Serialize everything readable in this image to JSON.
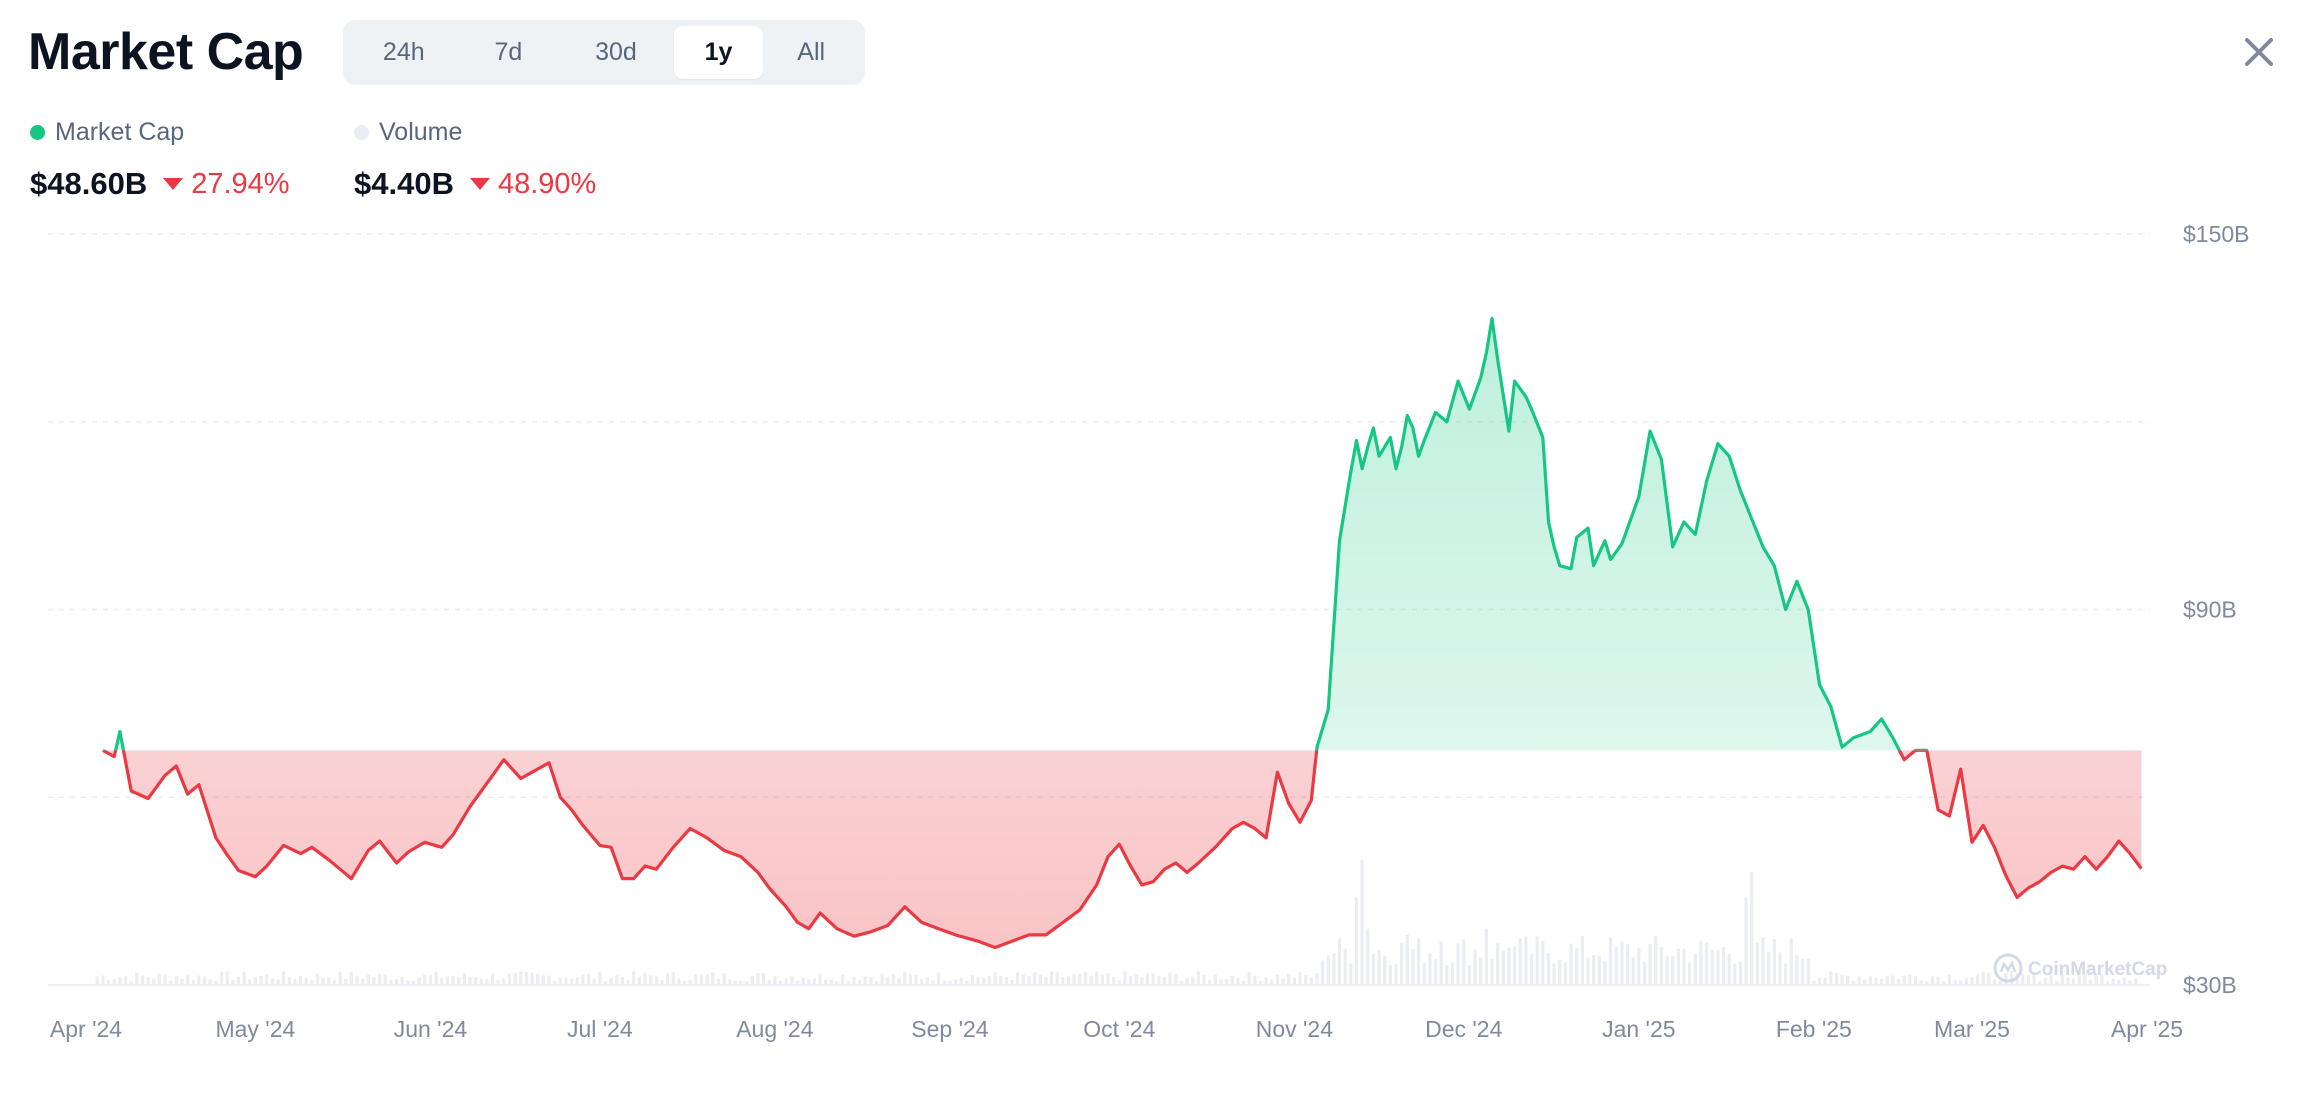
{
  "title": "Market Cap",
  "tabs": [
    {
      "label": "24h",
      "active": false
    },
    {
      "label": "7d",
      "active": false
    },
    {
      "label": "30d",
      "active": false
    },
    {
      "label": "1y",
      "active": true
    },
    {
      "label": "All",
      "active": false
    }
  ],
  "legend": {
    "market_cap": {
      "label": "Market Cap",
      "color": "#16c784"
    },
    "volume": {
      "label": "Volume",
      "color": "#eff2f5"
    }
  },
  "stats": {
    "market_cap": {
      "value": "$48.60B",
      "change": "27.94%",
      "direction": "down"
    },
    "volume": {
      "value": "$4.40B",
      "change": "48.90%",
      "direction": "down"
    }
  },
  "colors": {
    "up": "#16c784",
    "down": "#ea3943",
    "axis_text": "#808a9d",
    "grid": "#e9ecf0"
  },
  "watermark": "CoinMarketCap",
  "chart_data": {
    "type": "area",
    "baseline": 67.5,
    "ylim": [
      30,
      150
    ],
    "y_ticks": [
      {
        "value": 150,
        "label": "$150B"
      },
      {
        "value": 90,
        "label": "$90B"
      },
      {
        "value": 30,
        "label": "$30B"
      }
    ],
    "gridlines": [
      150,
      120,
      90,
      60
    ],
    "x_ticks": [
      {
        "label": "Apr '24",
        "date": "2024-04-01"
      },
      {
        "label": "May '24",
        "date": "2024-05-01"
      },
      {
        "label": "Jun '24",
        "date": "2024-06-01"
      },
      {
        "label": "Jul '24",
        "date": "2024-07-01"
      },
      {
        "label": "Aug '24",
        "date": "2024-08-01"
      },
      {
        "label": "Sep '24",
        "date": "2024-09-01"
      },
      {
        "label": "Oct '24",
        "date": "2024-10-01"
      },
      {
        "label": "Nov '24",
        "date": "2024-11-01"
      },
      {
        "label": "Dec '24",
        "date": "2024-12-01"
      },
      {
        "label": "Jan '25",
        "date": "2025-01-01"
      },
      {
        "label": "Feb '25",
        "date": "2025-02-01"
      },
      {
        "label": "Mar '25",
        "date": "2025-03-01"
      },
      {
        "label": "Apr '25",
        "date": "2025-04-01"
      }
    ],
    "x_range": [
      "2024-04-01",
      "2025-04-01"
    ],
    "series": [
      {
        "name": "Market Cap",
        "points": [
          [
            "2024-04-04",
            67.5
          ],
          [
            "2024-04-06",
            66.5
          ],
          [
            "2024-04-07",
            70.5
          ],
          [
            "2024-04-09",
            61.0
          ],
          [
            "2024-04-12",
            59.8
          ],
          [
            "2024-04-15",
            63.5
          ],
          [
            "2024-04-17",
            65.0
          ],
          [
            "2024-04-19",
            60.5
          ],
          [
            "2024-04-21",
            62.0
          ],
          [
            "2024-04-24",
            53.5
          ],
          [
            "2024-04-26",
            50.8
          ],
          [
            "2024-04-28",
            48.3
          ],
          [
            "2024-05-01",
            47.3
          ],
          [
            "2024-05-03",
            49.0
          ],
          [
            "2024-05-06",
            52.3
          ],
          [
            "2024-05-09",
            51.0
          ],
          [
            "2024-05-11",
            52.0
          ],
          [
            "2024-05-14",
            50.0
          ],
          [
            "2024-05-16",
            48.5
          ],
          [
            "2024-05-18",
            47.0
          ],
          [
            "2024-05-21",
            51.5
          ],
          [
            "2024-05-23",
            53.0
          ],
          [
            "2024-05-26",
            49.5
          ],
          [
            "2024-05-28",
            51.2
          ],
          [
            "2024-05-31",
            52.8
          ],
          [
            "2024-06-03",
            52.0
          ],
          [
            "2024-06-05",
            54.0
          ],
          [
            "2024-06-08",
            58.5
          ],
          [
            "2024-06-10",
            61.0
          ],
          [
            "2024-06-12",
            63.5
          ],
          [
            "2024-06-14",
            66.0
          ],
          [
            "2024-06-17",
            63.0
          ],
          [
            "2024-06-19",
            64.0
          ],
          [
            "2024-06-22",
            65.5
          ],
          [
            "2024-06-24",
            60.0
          ],
          [
            "2024-06-26",
            58.0
          ],
          [
            "2024-06-28",
            55.5
          ],
          [
            "2024-07-01",
            52.3
          ],
          [
            "2024-07-03",
            52.0
          ],
          [
            "2024-07-05",
            47.0
          ],
          [
            "2024-07-07",
            47.0
          ],
          [
            "2024-07-09",
            49.0
          ],
          [
            "2024-07-11",
            48.5
          ],
          [
            "2024-07-14",
            52.0
          ],
          [
            "2024-07-17",
            55.0
          ],
          [
            "2024-07-20",
            53.5
          ],
          [
            "2024-07-23",
            51.5
          ],
          [
            "2024-07-26",
            50.5
          ],
          [
            "2024-07-29",
            48.0
          ],
          [
            "2024-07-31",
            45.5
          ],
          [
            "2024-08-03",
            42.5
          ],
          [
            "2024-08-05",
            40.0
          ],
          [
            "2024-08-07",
            39.0
          ],
          [
            "2024-08-09",
            41.5
          ],
          [
            "2024-08-12",
            39.0
          ],
          [
            "2024-08-15",
            37.8
          ],
          [
            "2024-08-18",
            38.5
          ],
          [
            "2024-08-21",
            39.5
          ],
          [
            "2024-08-24",
            42.5
          ],
          [
            "2024-08-27",
            40.0
          ],
          [
            "2024-08-30",
            39.0
          ],
          [
            "2024-09-02",
            38.0
          ],
          [
            "2024-09-06",
            37.0
          ],
          [
            "2024-09-09",
            36.0
          ],
          [
            "2024-09-12",
            37.0
          ],
          [
            "2024-09-15",
            38.0
          ],
          [
            "2024-09-18",
            38.0
          ],
          [
            "2024-09-21",
            40.0
          ],
          [
            "2024-09-24",
            42.0
          ],
          [
            "2024-09-27",
            46.0
          ],
          [
            "2024-09-29",
            50.5
          ],
          [
            "2024-10-01",
            52.5
          ],
          [
            "2024-10-03",
            49.0
          ],
          [
            "2024-10-05",
            46.0
          ],
          [
            "2024-10-07",
            46.5
          ],
          [
            "2024-10-09",
            48.5
          ],
          [
            "2024-10-11",
            49.5
          ],
          [
            "2024-10-13",
            48.0
          ],
          [
            "2024-10-15",
            49.5
          ],
          [
            "2024-10-18",
            52.0
          ],
          [
            "2024-10-21",
            55.0
          ],
          [
            "2024-10-23",
            56.0
          ],
          [
            "2024-10-25",
            55.0
          ],
          [
            "2024-10-27",
            53.5
          ],
          [
            "2024-10-29",
            64.0
          ],
          [
            "2024-10-31",
            59.0
          ],
          [
            "2024-11-02",
            56.0
          ],
          [
            "2024-11-04",
            59.5
          ],
          [
            "2024-11-05",
            68.0
          ],
          [
            "2024-11-07",
            74.0
          ],
          [
            "2024-11-09",
            101.0
          ],
          [
            "2024-11-11",
            112.0
          ],
          [
            "2024-11-12",
            117.0
          ],
          [
            "2024-11-13",
            112.5
          ],
          [
            "2024-11-14",
            116.0
          ],
          [
            "2024-11-15",
            119.0
          ],
          [
            "2024-11-16",
            114.5
          ],
          [
            "2024-11-17",
            116.0
          ],
          [
            "2024-11-18",
            117.5
          ],
          [
            "2024-11-19",
            112.5
          ],
          [
            "2024-11-20",
            116.0
          ],
          [
            "2024-11-21",
            121.0
          ],
          [
            "2024-11-22",
            119.0
          ],
          [
            "2024-11-23",
            114.5
          ],
          [
            "2024-11-24",
            117.0
          ],
          [
            "2024-11-26",
            121.5
          ],
          [
            "2024-11-28",
            120.0
          ],
          [
            "2024-11-30",
            126.5
          ],
          [
            "2024-12-02",
            122.0
          ],
          [
            "2024-12-04",
            127.0
          ],
          [
            "2024-12-05",
            131.0
          ],
          [
            "2024-12-06",
            136.5
          ],
          [
            "2024-12-07",
            130.0
          ],
          [
            "2024-12-09",
            118.5
          ],
          [
            "2024-12-10",
            126.5
          ],
          [
            "2024-12-12",
            124.0
          ],
          [
            "2024-12-13",
            122.0
          ],
          [
            "2024-12-15",
            117.5
          ],
          [
            "2024-12-16",
            104.0
          ],
          [
            "2024-12-17",
            100.0
          ],
          [
            "2024-12-18",
            97.0
          ],
          [
            "2024-12-20",
            96.5
          ],
          [
            "2024-12-21",
            101.5
          ],
          [
            "2024-12-23",
            103.0
          ],
          [
            "2024-12-24",
            97.0
          ],
          [
            "2024-12-26",
            101.0
          ],
          [
            "2024-12-27",
            98.0
          ],
          [
            "2024-12-29",
            100.5
          ],
          [
            "2025-01-01",
            108.0
          ],
          [
            "2025-01-03",
            118.5
          ],
          [
            "2025-01-05",
            114.0
          ],
          [
            "2025-01-07",
            100.0
          ],
          [
            "2025-01-09",
            104.0
          ],
          [
            "2025-01-11",
            102.0
          ],
          [
            "2025-01-13",
            110.5
          ],
          [
            "2025-01-15",
            116.5
          ],
          [
            "2025-01-17",
            114.5
          ],
          [
            "2025-01-19",
            109.0
          ],
          [
            "2025-01-21",
            104.5
          ],
          [
            "2025-01-23",
            100.0
          ],
          [
            "2025-01-25",
            97.0
          ],
          [
            "2025-01-27",
            90.0
          ],
          [
            "2025-01-29",
            94.5
          ],
          [
            "2025-01-31",
            90.0
          ],
          [
            "2025-02-02",
            78.0
          ],
          [
            "2025-02-04",
            74.5
          ],
          [
            "2025-02-06",
            68.0
          ],
          [
            "2025-02-08",
            69.5
          ],
          [
            "2025-02-11",
            70.5
          ],
          [
            "2025-02-13",
            72.5
          ],
          [
            "2025-02-15",
            69.5
          ],
          [
            "2025-02-17",
            66.0
          ],
          [
            "2025-02-19",
            67.5
          ],
          [
            "2025-02-21",
            67.5
          ],
          [
            "2025-02-23",
            58.0
          ],
          [
            "2025-02-25",
            57.0
          ],
          [
            "2025-02-27",
            64.5
          ],
          [
            "2025-03-01",
            52.8
          ],
          [
            "2025-03-03",
            55.5
          ],
          [
            "2025-03-05",
            52.0
          ],
          [
            "2025-03-07",
            47.5
          ],
          [
            "2025-03-09",
            44.0
          ],
          [
            "2025-03-11",
            45.5
          ],
          [
            "2025-03-13",
            46.5
          ],
          [
            "2025-03-15",
            48.0
          ],
          [
            "2025-03-17",
            49.0
          ],
          [
            "2025-03-19",
            48.5
          ],
          [
            "2025-03-21",
            50.5
          ],
          [
            "2025-03-23",
            48.5
          ],
          [
            "2025-03-25",
            50.5
          ],
          [
            "2025-03-27",
            53.0
          ],
          [
            "2025-03-29",
            51.0
          ],
          [
            "2025-03-31",
            48.6
          ]
        ]
      },
      {
        "name": "Volume",
        "base_noise": true,
        "spikes": [
          [
            "2024-11-12",
            14
          ],
          [
            "2024-11-13",
            20
          ],
          [
            "2024-11-14",
            9
          ],
          [
            "2024-11-21",
            8
          ],
          [
            "2024-11-27",
            7
          ],
          [
            "2024-12-05",
            9
          ],
          [
            "2024-12-09",
            6
          ],
          [
            "2024-12-18",
            4
          ],
          [
            "2025-01-20",
            14
          ],
          [
            "2025-01-21",
            18
          ]
        ]
      }
    ]
  }
}
